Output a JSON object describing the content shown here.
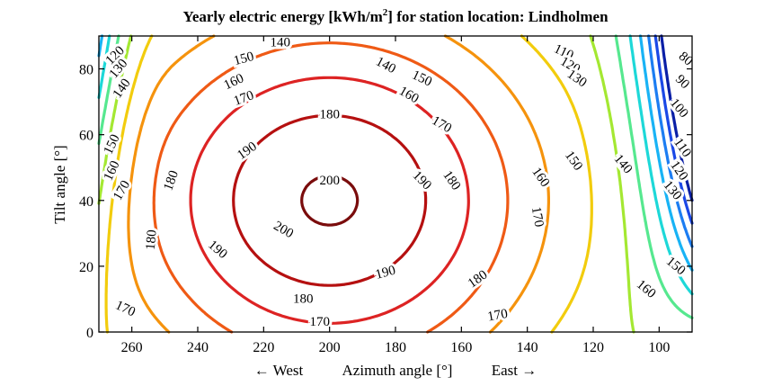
{
  "chart_data": {
    "type": "contour",
    "title": "Yearly electric energy [kWh/m",
    "title_sup": "2",
    "title_suffix": "] for station location: Lindholmen",
    "xlabel": "Azimuth angle [°]",
    "xlabel_west": "← West",
    "xlabel_east": "East →",
    "ylabel": "Tilt angle [°]",
    "xlim": [
      270,
      90
    ],
    "ylim": [
      0,
      90
    ],
    "x_ticks": [
      260,
      240,
      220,
      200,
      180,
      160,
      140,
      120,
      100
    ],
    "y_ticks": [
      0,
      20,
      40,
      60,
      80
    ],
    "grid": false,
    "levels": [
      {
        "value": 80,
        "color": "#0a1fa6",
        "labels": [
          {
            "text": "80",
            "x": 92,
            "y": 83,
            "angle": 40
          }
        ]
      },
      {
        "value": 90,
        "color": "#1b48e6",
        "labels": [
          {
            "text": "90",
            "x": 93,
            "y": 76,
            "angle": 45
          }
        ]
      },
      {
        "value": 100,
        "color": "#1c7df2",
        "labels": [
          {
            "text": "100",
            "x": 94,
            "y": 68,
            "angle": 50
          }
        ]
      },
      {
        "value": 110,
        "color": "#18b3f5",
        "labels": [
          {
            "text": "110",
            "x": 129,
            "y": 85,
            "angle": 25
          },
          {
            "text": "110",
            "x": 93,
            "y": 56,
            "angle": 55
          }
        ]
      },
      {
        "value": 120,
        "color": "#1dd8d8",
        "labels": [
          {
            "text": "120",
            "x": 265,
            "y": 84,
            "angle": -45
          },
          {
            "text": "120",
            "x": 127,
            "y": 81,
            "angle": 30
          },
          {
            "text": "120",
            "x": 94,
            "y": 49,
            "angle": 55
          }
        ]
      },
      {
        "value": 130,
        "color": "#56e88f",
        "labels": [
          {
            "text": "130",
            "x": 264,
            "y": 80,
            "angle": -50
          },
          {
            "text": "130",
            "x": 125,
            "y": 77,
            "angle": 35
          },
          {
            "text": "130",
            "x": 96,
            "y": 43,
            "angle": 50
          }
        ]
      },
      {
        "value": 140,
        "color": "#a4e832",
        "labels": [
          {
            "text": "140",
            "x": 263,
            "y": 74,
            "angle": -55
          },
          {
            "text": "140",
            "x": 215,
            "y": 88,
            "angle": 0
          },
          {
            "text": "140",
            "x": 183,
            "y": 81,
            "angle": 28
          },
          {
            "text": "140",
            "x": 111,
            "y": 51,
            "angle": 50
          }
        ]
      },
      {
        "value": 150,
        "color": "#f2cc0d",
        "labels": [
          {
            "text": "150",
            "x": 266,
            "y": 57,
            "angle": -65
          },
          {
            "text": "150",
            "x": 226,
            "y": 83,
            "angle": -15
          },
          {
            "text": "150",
            "x": 172,
            "y": 77,
            "angle": 25
          },
          {
            "text": "150",
            "x": 126,
            "y": 52,
            "angle": 55
          },
          {
            "text": "150",
            "x": 95,
            "y": 20,
            "angle": 40
          }
        ]
      },
      {
        "value": 160,
        "color": "#f5930d",
        "labels": [
          {
            "text": "160",
            "x": 266,
            "y": 49,
            "angle": -65
          },
          {
            "text": "160",
            "x": 229,
            "y": 76,
            "angle": -25
          },
          {
            "text": "160",
            "x": 176,
            "y": 72,
            "angle": 30
          },
          {
            "text": "160",
            "x": 136,
            "y": 47,
            "angle": 55
          },
          {
            "text": "160",
            "x": 104,
            "y": 13,
            "angle": 40
          }
        ]
      },
      {
        "value": 170,
        "color": "#ef5a15",
        "labels": [
          {
            "text": "170",
            "x": 263,
            "y": 43,
            "angle": -60
          },
          {
            "text": "170",
            "x": 226,
            "y": 71,
            "angle": -20
          },
          {
            "text": "170",
            "x": 166,
            "y": 63,
            "angle": 30
          },
          {
            "text": "170",
            "x": 137,
            "y": 35,
            "angle": 80
          },
          {
            "text": "170",
            "x": 262,
            "y": 7,
            "angle": 25
          },
          {
            "text": "170",
            "x": 203,
            "y": 3,
            "angle": 0
          },
          {
            "text": "170",
            "x": 149,
            "y": 5,
            "angle": -10
          }
        ]
      },
      {
        "value": 180,
        "color": "#dd2323",
        "labels": [
          {
            "text": "180",
            "x": 200,
            "y": 66,
            "angle": 0
          },
          {
            "text": "180",
            "x": 248,
            "y": 46,
            "angle": -70
          },
          {
            "text": "180",
            "x": 163,
            "y": 46,
            "angle": 55
          },
          {
            "text": "180",
            "x": 254,
            "y": 28,
            "angle": -85
          },
          {
            "text": "180",
            "x": 208,
            "y": 10,
            "angle": 0
          },
          {
            "text": "180",
            "x": 155,
            "y": 16,
            "angle": -35
          }
        ]
      },
      {
        "value": 190,
        "color": "#b51010",
        "labels": [
          {
            "text": "190",
            "x": 225,
            "y": 55,
            "angle": -35
          },
          {
            "text": "190",
            "x": 172,
            "y": 46,
            "angle": 45
          },
          {
            "text": "190",
            "x": 234,
            "y": 25,
            "angle": 40
          },
          {
            "text": "190",
            "x": 183,
            "y": 18,
            "angle": -15
          }
        ]
      },
      {
        "value": 200,
        "color": "#7a0c0c",
        "labels": [
          {
            "text": "200",
            "x": 200,
            "y": 46,
            "angle": 0
          },
          {
            "text": "200",
            "x": 214,
            "y": 31,
            "angle": 30
          }
        ]
      }
    ]
  }
}
